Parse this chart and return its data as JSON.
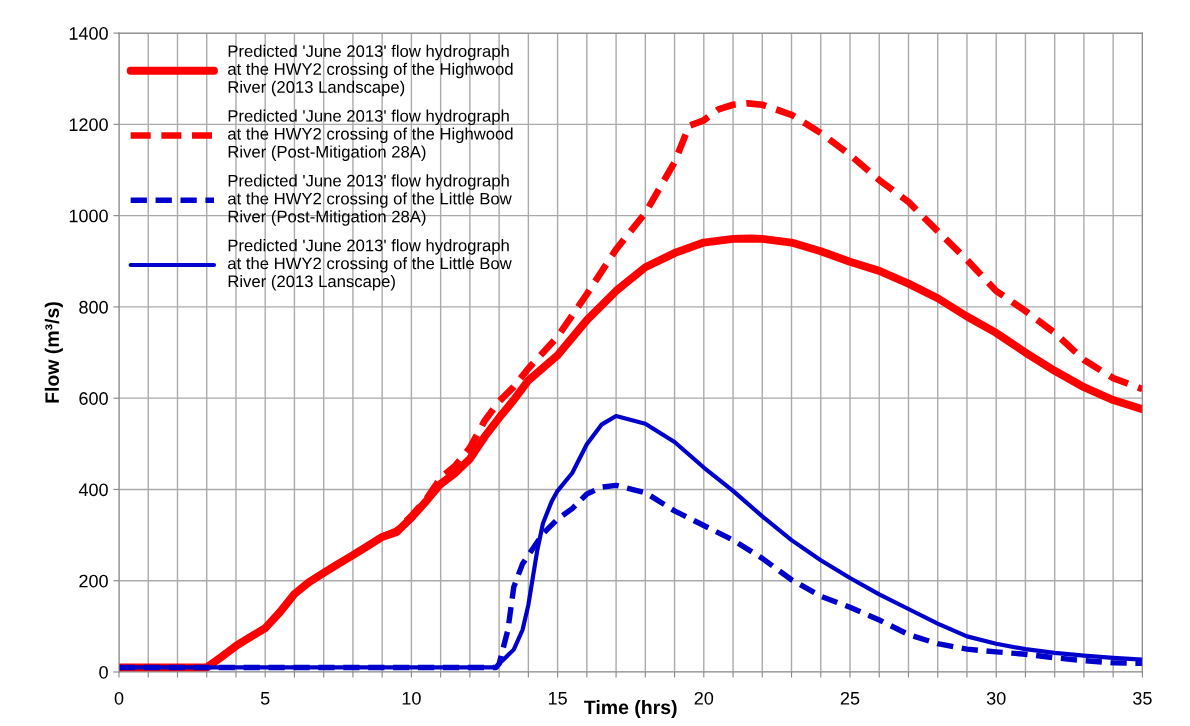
{
  "chart_data": {
    "type": "line",
    "xlabel": "Time (hrs)",
    "ylabel": "Flow (m³/s)",
    "xlim": [
      0,
      35
    ],
    "ylim": [
      0,
      1400
    ],
    "xticks": [
      0,
      {
        "value": 1,
        "label": null
      },
      {
        "value": 2,
        "label": null
      },
      {
        "value": 3,
        "label": null
      },
      {
        "value": 4,
        "label": null
      },
      5,
      {
        "value": 6,
        "label": null
      },
      {
        "value": 7,
        "label": null
      },
      {
        "value": 8,
        "label": null
      },
      {
        "value": 9,
        "label": null
      },
      10,
      {
        "value": 11,
        "label": null
      },
      {
        "value": 12,
        "label": null
      },
      {
        "value": 13,
        "label": null
      },
      {
        "value": 14,
        "label": null
      },
      15,
      {
        "value": 16,
        "label": null
      },
      {
        "value": 17,
        "label": null
      },
      {
        "value": 18,
        "label": null
      },
      {
        "value": 19,
        "label": null
      },
      20,
      {
        "value": 21,
        "label": null
      },
      {
        "value": 22,
        "label": null
      },
      {
        "value": 23,
        "label": null
      },
      {
        "value": 24,
        "label": null
      },
      25,
      {
        "value": 26,
        "label": null
      },
      {
        "value": 27,
        "label": null
      },
      {
        "value": 28,
        "label": null
      },
      {
        "value": 29,
        "label": null
      },
      30,
      {
        "value": 31,
        "label": null
      },
      {
        "value": 32,
        "label": null
      },
      {
        "value": 33,
        "label": null
      },
      {
        "value": 34,
        "label": null
      },
      35
    ],
    "yticks": [
      0,
      200,
      400,
      600,
      800,
      1000,
      1200,
      1400
    ],
    "grid": true,
    "legend": "top left",
    "marker": "none",
    "series": [
      {
        "name": "Predicted 'June 2013' flow hydrograph at the HWY2 crossing of the Highwood River (2013 Landscape)",
        "color": "#ff0000",
        "line_style": "solid",
        "x": [
          0,
          3,
          3.5,
          4,
          4.5,
          5,
          5.5,
          6,
          6.5,
          7,
          7.5,
          8,
          8.5,
          9,
          9.5,
          10,
          10.5,
          11,
          11.5,
          12,
          12.5,
          13,
          13.5,
          14,
          15,
          16,
          17,
          18,
          19,
          20,
          21,
          21.6,
          22,
          23,
          24,
          25,
          26,
          27,
          28,
          29,
          30,
          31,
          32,
          33,
          34,
          35
        ],
        "values": [
          10,
          10,
          33,
          57,
          77,
          96,
          131,
          171,
          197,
          217,
          237,
          256,
          276,
          296,
          307,
          338,
          374,
          412,
          436,
          467,
          515,
          557,
          596,
          639,
          694,
          771,
          835,
          887,
          918,
          941,
          949,
          950,
          949,
          941,
          922,
          899,
          879,
          851,
          819,
          779,
          743,
          700,
          660,
          624,
          596,
          576
        ]
      },
      {
        "name": "Predicted 'June 2013' flow hydrograph at the HWY2 crossing of the Highwood River (Post-Mitigation 28A)",
        "color": "#ff0000",
        "line_style": "dashed",
        "x": [
          0,
          3,
          3.5,
          4,
          4.5,
          5,
          5.5,
          6,
          6.5,
          7,
          7.5,
          8,
          8.5,
          9,
          9.5,
          10,
          10.5,
          11,
          11.5,
          12,
          12.5,
          13,
          13.5,
          14,
          15,
          16,
          17,
          18,
          19,
          19.5,
          20,
          20.5,
          21,
          21.5,
          22,
          23,
          24,
          25,
          26,
          27,
          28,
          29,
          30,
          31,
          32,
          33,
          34,
          35
        ],
        "values": [
          10,
          10,
          33,
          57,
          77,
          96,
          131,
          171,
          197,
          217,
          237,
          256,
          276,
          296,
          310,
          342,
          378,
          425,
          452,
          491,
          550,
          593,
          625,
          665,
          735,
          828,
          926,
          1006,
          1117,
          1197,
          1209,
          1233,
          1243,
          1246,
          1243,
          1221,
          1181,
          1133,
          1078,
          1030,
          966,
          903,
          835,
          791,
          743,
          684,
          644,
          620
        ]
      },
      {
        "name": "Predicted 'June 2013' flow hydrograph at the HWY2 crossing of the Little Bow River (Post-Mitigation 28A)",
        "color": "#0000cc",
        "line_style": "dashed",
        "x": [
          0,
          12.9,
          13,
          13.3,
          13.5,
          13.8,
          14,
          14.5,
          15,
          15.5,
          16,
          16.5,
          17,
          18,
          19,
          20,
          21,
          22,
          23,
          24,
          25,
          26,
          27,
          28,
          29,
          30,
          31,
          32,
          33,
          34,
          35
        ],
        "values": [
          10,
          10,
          18,
          92,
          186,
          237,
          256,
          303,
          335,
          358,
          390,
          405,
          409,
          393,
          353,
          321,
          289,
          249,
          202,
          166,
          142,
          114,
          82,
          62,
          50,
          44,
          39,
          31,
          25,
          20,
          19
        ]
      },
      {
        "name": "Predicted 'June 2013' flow hydrograph at the HWY2 crossing of the Little Bow River (2013 Lanscape)",
        "color": "#0000cc",
        "line_style": "solid",
        "x": [
          0,
          12.9,
          13,
          13.5,
          13.8,
          14,
          14.3,
          14.5,
          14.8,
          15,
          15.5,
          16,
          16.5,
          17,
          18,
          19,
          20,
          21,
          22,
          23,
          24,
          25,
          26,
          27,
          28,
          29,
          30,
          31,
          32,
          33,
          34,
          35
        ],
        "values": [
          10,
          10,
          18,
          49,
          92,
          147,
          265,
          326,
          374,
          397,
          436,
          499,
          542,
          561,
          544,
          504,
          448,
          397,
          341,
          289,
          245,
          206,
          170,
          138,
          106,
          78,
          62,
          50,
          42,
          36,
          31,
          27
        ]
      }
    ]
  }
}
